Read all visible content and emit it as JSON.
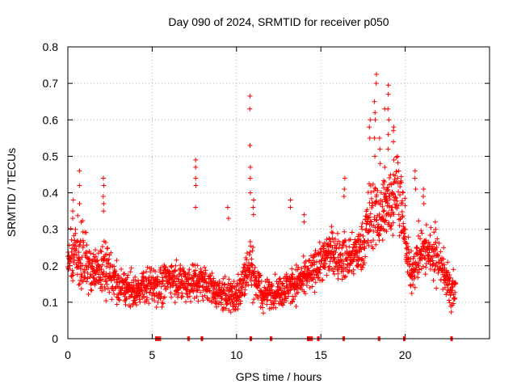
{
  "chart_data": {
    "type": "scatter",
    "title": "Day 090 of 2024, SRMTID for receiver p050",
    "xlabel": "GPS time / hours",
    "ylabel": "SRMTID / TECUs",
    "xlim": [
      0,
      25
    ],
    "ylim": [
      0,
      0.8
    ],
    "xticks": [
      0,
      5,
      10,
      15,
      20
    ],
    "xtick_labels": [
      "0",
      "5",
      "10",
      "15",
      "20"
    ],
    "yticks": [
      0,
      0.1,
      0.2,
      0.3,
      0.4,
      0.5,
      0.6,
      0.7,
      0.8
    ],
    "ytick_labels": [
      "0",
      "0.1",
      "0.2",
      "0.3",
      "0.4",
      "0.5",
      "0.6",
      "0.7",
      "0.8"
    ],
    "grid": true,
    "marker": "+",
    "series_color": "#ff0000",
    "baseline_gaps": [
      [
        5.2,
        5.5
      ],
      [
        7.1,
        7.2
      ],
      [
        7.9,
        8.0
      ],
      [
        10.8,
        10.9
      ],
      [
        12.0,
        12.1
      ],
      [
        14.2,
        14.5
      ],
      [
        14.8,
        14.9
      ],
      [
        16.3,
        16.4
      ],
      [
        18.4,
        18.5
      ],
      [
        19.9,
        20.0
      ],
      [
        22.7,
        22.8
      ]
    ],
    "envelope": [
      {
        "x": 0.0,
        "mean": 0.22,
        "spread": 0.07
      },
      {
        "x": 0.5,
        "mean": 0.24,
        "spread": 0.09
      },
      {
        "x": 1.0,
        "mean": 0.22,
        "spread": 0.08
      },
      {
        "x": 1.5,
        "mean": 0.18,
        "spread": 0.05
      },
      {
        "x": 2.0,
        "mean": 0.2,
        "spread": 0.07
      },
      {
        "x": 2.5,
        "mean": 0.18,
        "spread": 0.06
      },
      {
        "x": 3.0,
        "mean": 0.14,
        "spread": 0.05
      },
      {
        "x": 4.0,
        "mean": 0.13,
        "spread": 0.04
      },
      {
        "x": 5.0,
        "mean": 0.15,
        "spread": 0.05
      },
      {
        "x": 5.5,
        "mean": 0.14,
        "spread": 0.05
      },
      {
        "x": 6.0,
        "mean": 0.17,
        "spread": 0.05
      },
      {
        "x": 7.0,
        "mean": 0.15,
        "spread": 0.05
      },
      {
        "x": 8.0,
        "mean": 0.16,
        "spread": 0.05
      },
      {
        "x": 9.0,
        "mean": 0.12,
        "spread": 0.04
      },
      {
        "x": 10.0,
        "mean": 0.12,
        "spread": 0.05
      },
      {
        "x": 10.8,
        "mean": 0.2,
        "spread": 0.07
      },
      {
        "x": 11.5,
        "mean": 0.12,
        "spread": 0.04
      },
      {
        "x": 12.5,
        "mean": 0.13,
        "spread": 0.04
      },
      {
        "x": 13.5,
        "mean": 0.15,
        "spread": 0.05
      },
      {
        "x": 14.5,
        "mean": 0.18,
        "spread": 0.05
      },
      {
        "x": 15.5,
        "mean": 0.24,
        "spread": 0.06
      },
      {
        "x": 16.5,
        "mean": 0.22,
        "spread": 0.06
      },
      {
        "x": 17.5,
        "mean": 0.25,
        "spread": 0.06
      },
      {
        "x": 18.0,
        "mean": 0.35,
        "spread": 0.1
      },
      {
        "x": 18.5,
        "mean": 0.32,
        "spread": 0.09
      },
      {
        "x": 19.0,
        "mean": 0.38,
        "spread": 0.1
      },
      {
        "x": 19.6,
        "mean": 0.42,
        "spread": 0.1
      },
      {
        "x": 20.3,
        "mean": 0.18,
        "spread": 0.05
      },
      {
        "x": 21.0,
        "mean": 0.25,
        "spread": 0.07
      },
      {
        "x": 22.0,
        "mean": 0.22,
        "spread": 0.06
      },
      {
        "x": 22.7,
        "mean": 0.13,
        "spread": 0.05
      }
    ],
    "spikes": [
      {
        "x": 0.3,
        "values": [
          0.38,
          0.35,
          0.33
        ]
      },
      {
        "x": 0.7,
        "values": [
          0.46,
          0.42,
          0.37
        ]
      },
      {
        "x": 2.1,
        "values": [
          0.44,
          0.42,
          0.39,
          0.37,
          0.35
        ]
      },
      {
        "x": 7.6,
        "values": [
          0.49,
          0.47,
          0.44,
          0.42,
          0.36
        ]
      },
      {
        "x": 9.5,
        "values": [
          0.36,
          0.33
        ]
      },
      {
        "x": 10.8,
        "values": [
          0.665,
          0.63,
          0.53,
          0.47,
          0.44,
          0.4
        ]
      },
      {
        "x": 11.0,
        "values": [
          0.38,
          0.36,
          0.34
        ]
      },
      {
        "x": 13.2,
        "values": [
          0.38,
          0.36
        ]
      },
      {
        "x": 14.0,
        "values": [
          0.34,
          0.32
        ]
      },
      {
        "x": 16.4,
        "values": [
          0.44,
          0.41,
          0.39
        ]
      },
      {
        "x": 17.9,
        "values": [
          0.6,
          0.58,
          0.55
        ]
      },
      {
        "x": 18.2,
        "values": [
          0.65,
          0.62,
          0.6,
          0.55,
          0.5
        ]
      },
      {
        "x": 18.3,
        "values": [
          0.725,
          0.7
        ]
      },
      {
        "x": 18.5,
        "values": [
          0.55,
          0.52,
          0.48
        ]
      },
      {
        "x": 18.8,
        "values": [
          0.63,
          0.47,
          0.43
        ]
      },
      {
        "x": 19.0,
        "values": [
          0.695,
          0.67,
          0.63,
          0.6,
          0.56,
          0.52
        ]
      },
      {
        "x": 19.3,
        "values": [
          0.58,
          0.57,
          0.54,
          0.49,
          0.45
        ]
      },
      {
        "x": 20.6,
        "values": [
          0.46,
          0.44,
          0.41
        ]
      },
      {
        "x": 21.1,
        "values": [
          0.41,
          0.39,
          0.37
        ]
      },
      {
        "x": 21.8,
        "values": [
          0.32,
          0.3
        ]
      }
    ]
  }
}
